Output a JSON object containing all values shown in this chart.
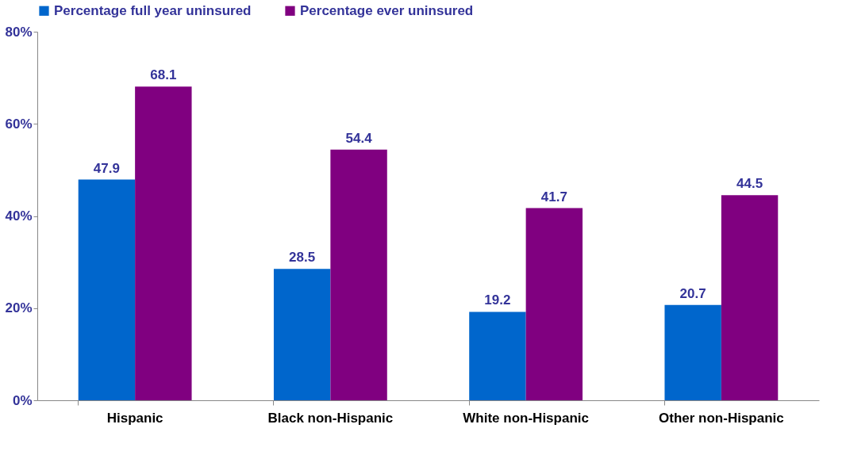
{
  "chart_data": {
    "type": "bar",
    "categories": [
      "Hispanic",
      "Black non-Hispanic",
      "White non-Hispanic",
      "Other non-Hispanic"
    ],
    "series": [
      {
        "name": "Percentage full year uninsured",
        "color": "#0066cc",
        "values": [
          47.9,
          28.5,
          19.2,
          20.7
        ]
      },
      {
        "name": "Percentage ever uninsured",
        "color": "#800080",
        "values": [
          68.1,
          54.4,
          41.7,
          44.5
        ]
      }
    ],
    "ylim": [
      0,
      80
    ],
    "yticks": [
      {
        "value": 0,
        "label": "0%"
      },
      {
        "value": 20,
        "label": "20%"
      },
      {
        "value": 40,
        "label": "40%"
      },
      {
        "value": 60,
        "label": "60%"
      },
      {
        "value": 80,
        "label": "80%"
      }
    ],
    "data_labels": true,
    "legend": "top",
    "grid": false
  }
}
